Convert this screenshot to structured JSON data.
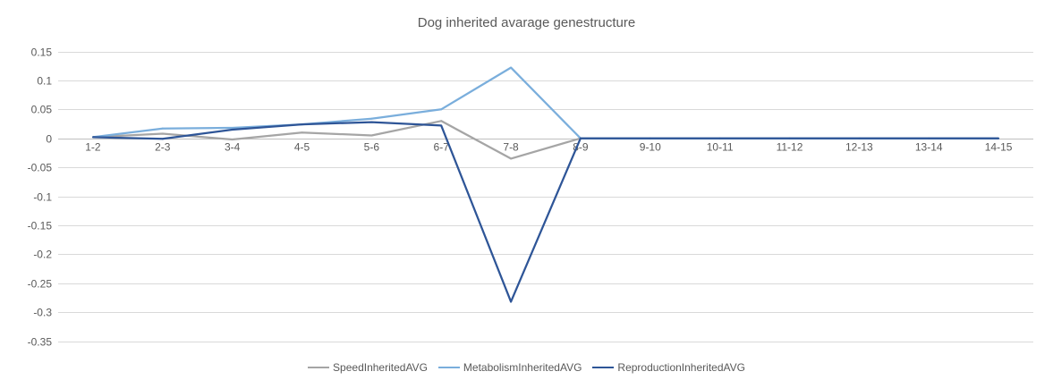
{
  "chart_data": {
    "type": "line",
    "title": "Dog inherited avarage genestructure",
    "xlabel": "",
    "ylabel": "",
    "categories": [
      "1-2",
      "2-3",
      "3-4",
      "4-5",
      "5-6",
      "6-7",
      "7-8",
      "8-9",
      "9-10",
      "10-11",
      "11-12",
      "12-13",
      "13-14",
      "14-15"
    ],
    "ylim": [
      -0.35,
      0.15
    ],
    "yticks": [
      "0.15",
      "0.1",
      "0.05",
      "0",
      "-0.05",
      "-0.1",
      "-0.15",
      "-0.2",
      "-0.25",
      "-0.3",
      "-0.35"
    ],
    "grid": true,
    "legend_position": "bottom",
    "series": [
      {
        "name": "SpeedInheritedAVG",
        "color": "#a5a5a5",
        "values": [
          0.002,
          0.008,
          -0.002,
          0.01,
          0.005,
          0.03,
          -0.035,
          0,
          0,
          0,
          0,
          0,
          0,
          0
        ]
      },
      {
        "name": "MetabolismInheritedAVG",
        "color": "#7aaedc",
        "values": [
          0.002,
          0.017,
          0.018,
          0.024,
          0.034,
          0.05,
          0.122,
          0,
          0,
          0,
          0,
          0,
          0,
          0
        ]
      },
      {
        "name": "ReproductionInheritedAVG",
        "color": "#2e5597",
        "values": [
          0.002,
          -0.001,
          0.015,
          0.024,
          0.028,
          0.022,
          -0.282,
          0,
          0,
          0,
          0,
          0,
          0,
          0
        ]
      }
    ]
  }
}
